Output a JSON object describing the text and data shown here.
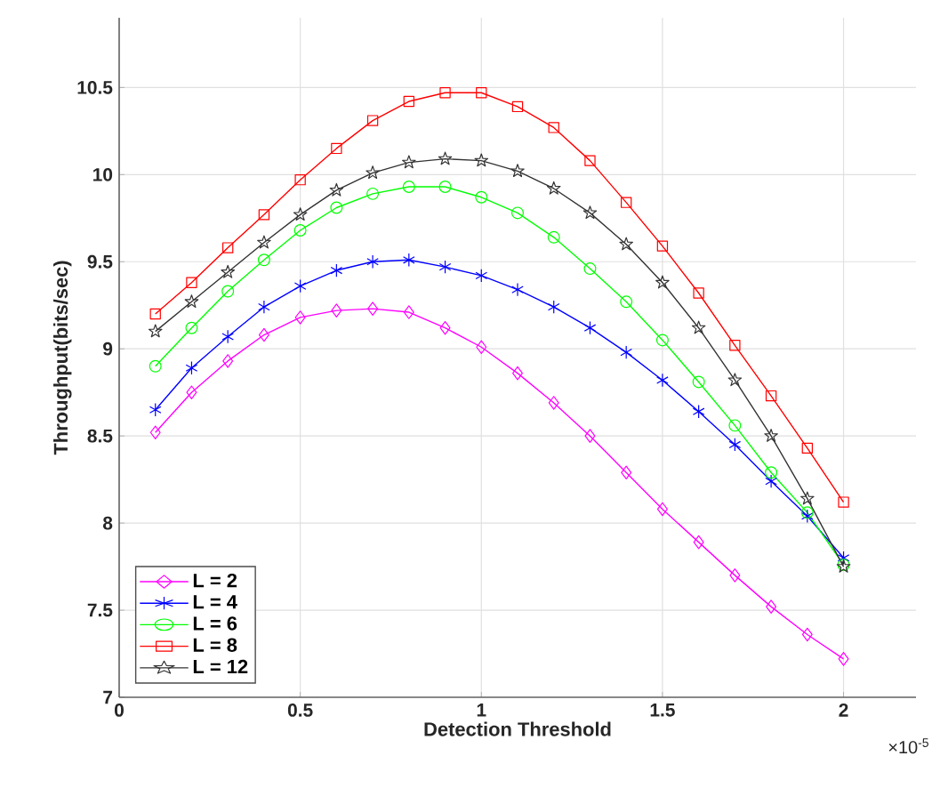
{
  "chart_data": {
    "type": "line",
    "xlabel": "Detection Threshold",
    "ylabel": "Throughput(bits/sec)",
    "annotations": [
      "×10$^{-5}$"
    ],
    "x": [
      0.1,
      0.2,
      0.3,
      0.4,
      0.5,
      0.6,
      0.7,
      0.8,
      0.9,
      1.0,
      1.1,
      1.2,
      1.3,
      1.4,
      1.5,
      1.6,
      1.7,
      1.8,
      1.9,
      2.0
    ],
    "series": [
      {
        "name": "L = 2",
        "color": "#ff00ff",
        "marker": "diamond",
        "values": [
          8.52,
          8.75,
          8.93,
          9.08,
          9.18,
          9.22,
          9.23,
          9.21,
          9.12,
          9.01,
          8.86,
          8.69,
          8.5,
          8.29,
          8.08,
          7.89,
          7.7,
          7.52,
          7.36,
          7.22
        ]
      },
      {
        "name": "L = 4",
        "color": "#0000ff",
        "marker": "cross",
        "values": [
          8.65,
          8.89,
          9.07,
          9.24,
          9.36,
          9.45,
          9.5,
          9.51,
          9.47,
          9.42,
          9.34,
          9.24,
          9.12,
          8.98,
          8.82,
          8.64,
          8.45,
          8.24,
          8.04,
          7.8
        ]
      },
      {
        "name": "L = 6",
        "color": "#00ff00",
        "marker": "circle",
        "values": [
          8.9,
          9.12,
          9.33,
          9.51,
          9.68,
          9.81,
          9.89,
          9.93,
          9.93,
          9.87,
          9.78,
          9.64,
          9.46,
          9.27,
          9.05,
          8.81,
          8.56,
          8.29,
          8.06,
          7.76
        ]
      },
      {
        "name": "L = 8",
        "color": "#ff0000",
        "marker": "square",
        "values": [
          9.2,
          9.38,
          9.58,
          9.77,
          9.97,
          10.15,
          10.31,
          10.42,
          10.47,
          10.47,
          10.39,
          10.27,
          10.08,
          9.84,
          9.59,
          9.32,
          9.02,
          8.73,
          8.43,
          8.12
        ]
      },
      {
        "name": "L = 12",
        "color": "#333333",
        "marker": "star",
        "values": [
          9.1,
          9.27,
          9.44,
          9.61,
          9.77,
          9.91,
          10.01,
          10.07,
          10.09,
          10.08,
          10.02,
          9.92,
          9.78,
          9.6,
          9.38,
          9.12,
          8.82,
          8.5,
          8.14,
          7.75
        ]
      }
    ],
    "xlim": [
      0,
      2.2
    ],
    "xticks": [
      0,
      0.5,
      1,
      1.5,
      2
    ],
    "ylim": [
      7,
      10.9
    ],
    "yticks": [
      7,
      7.5,
      8,
      8.5,
      9,
      9.5,
      10,
      10.5
    ],
    "grid": true,
    "legend": "bottom left",
    "line_style": "solid"
  }
}
